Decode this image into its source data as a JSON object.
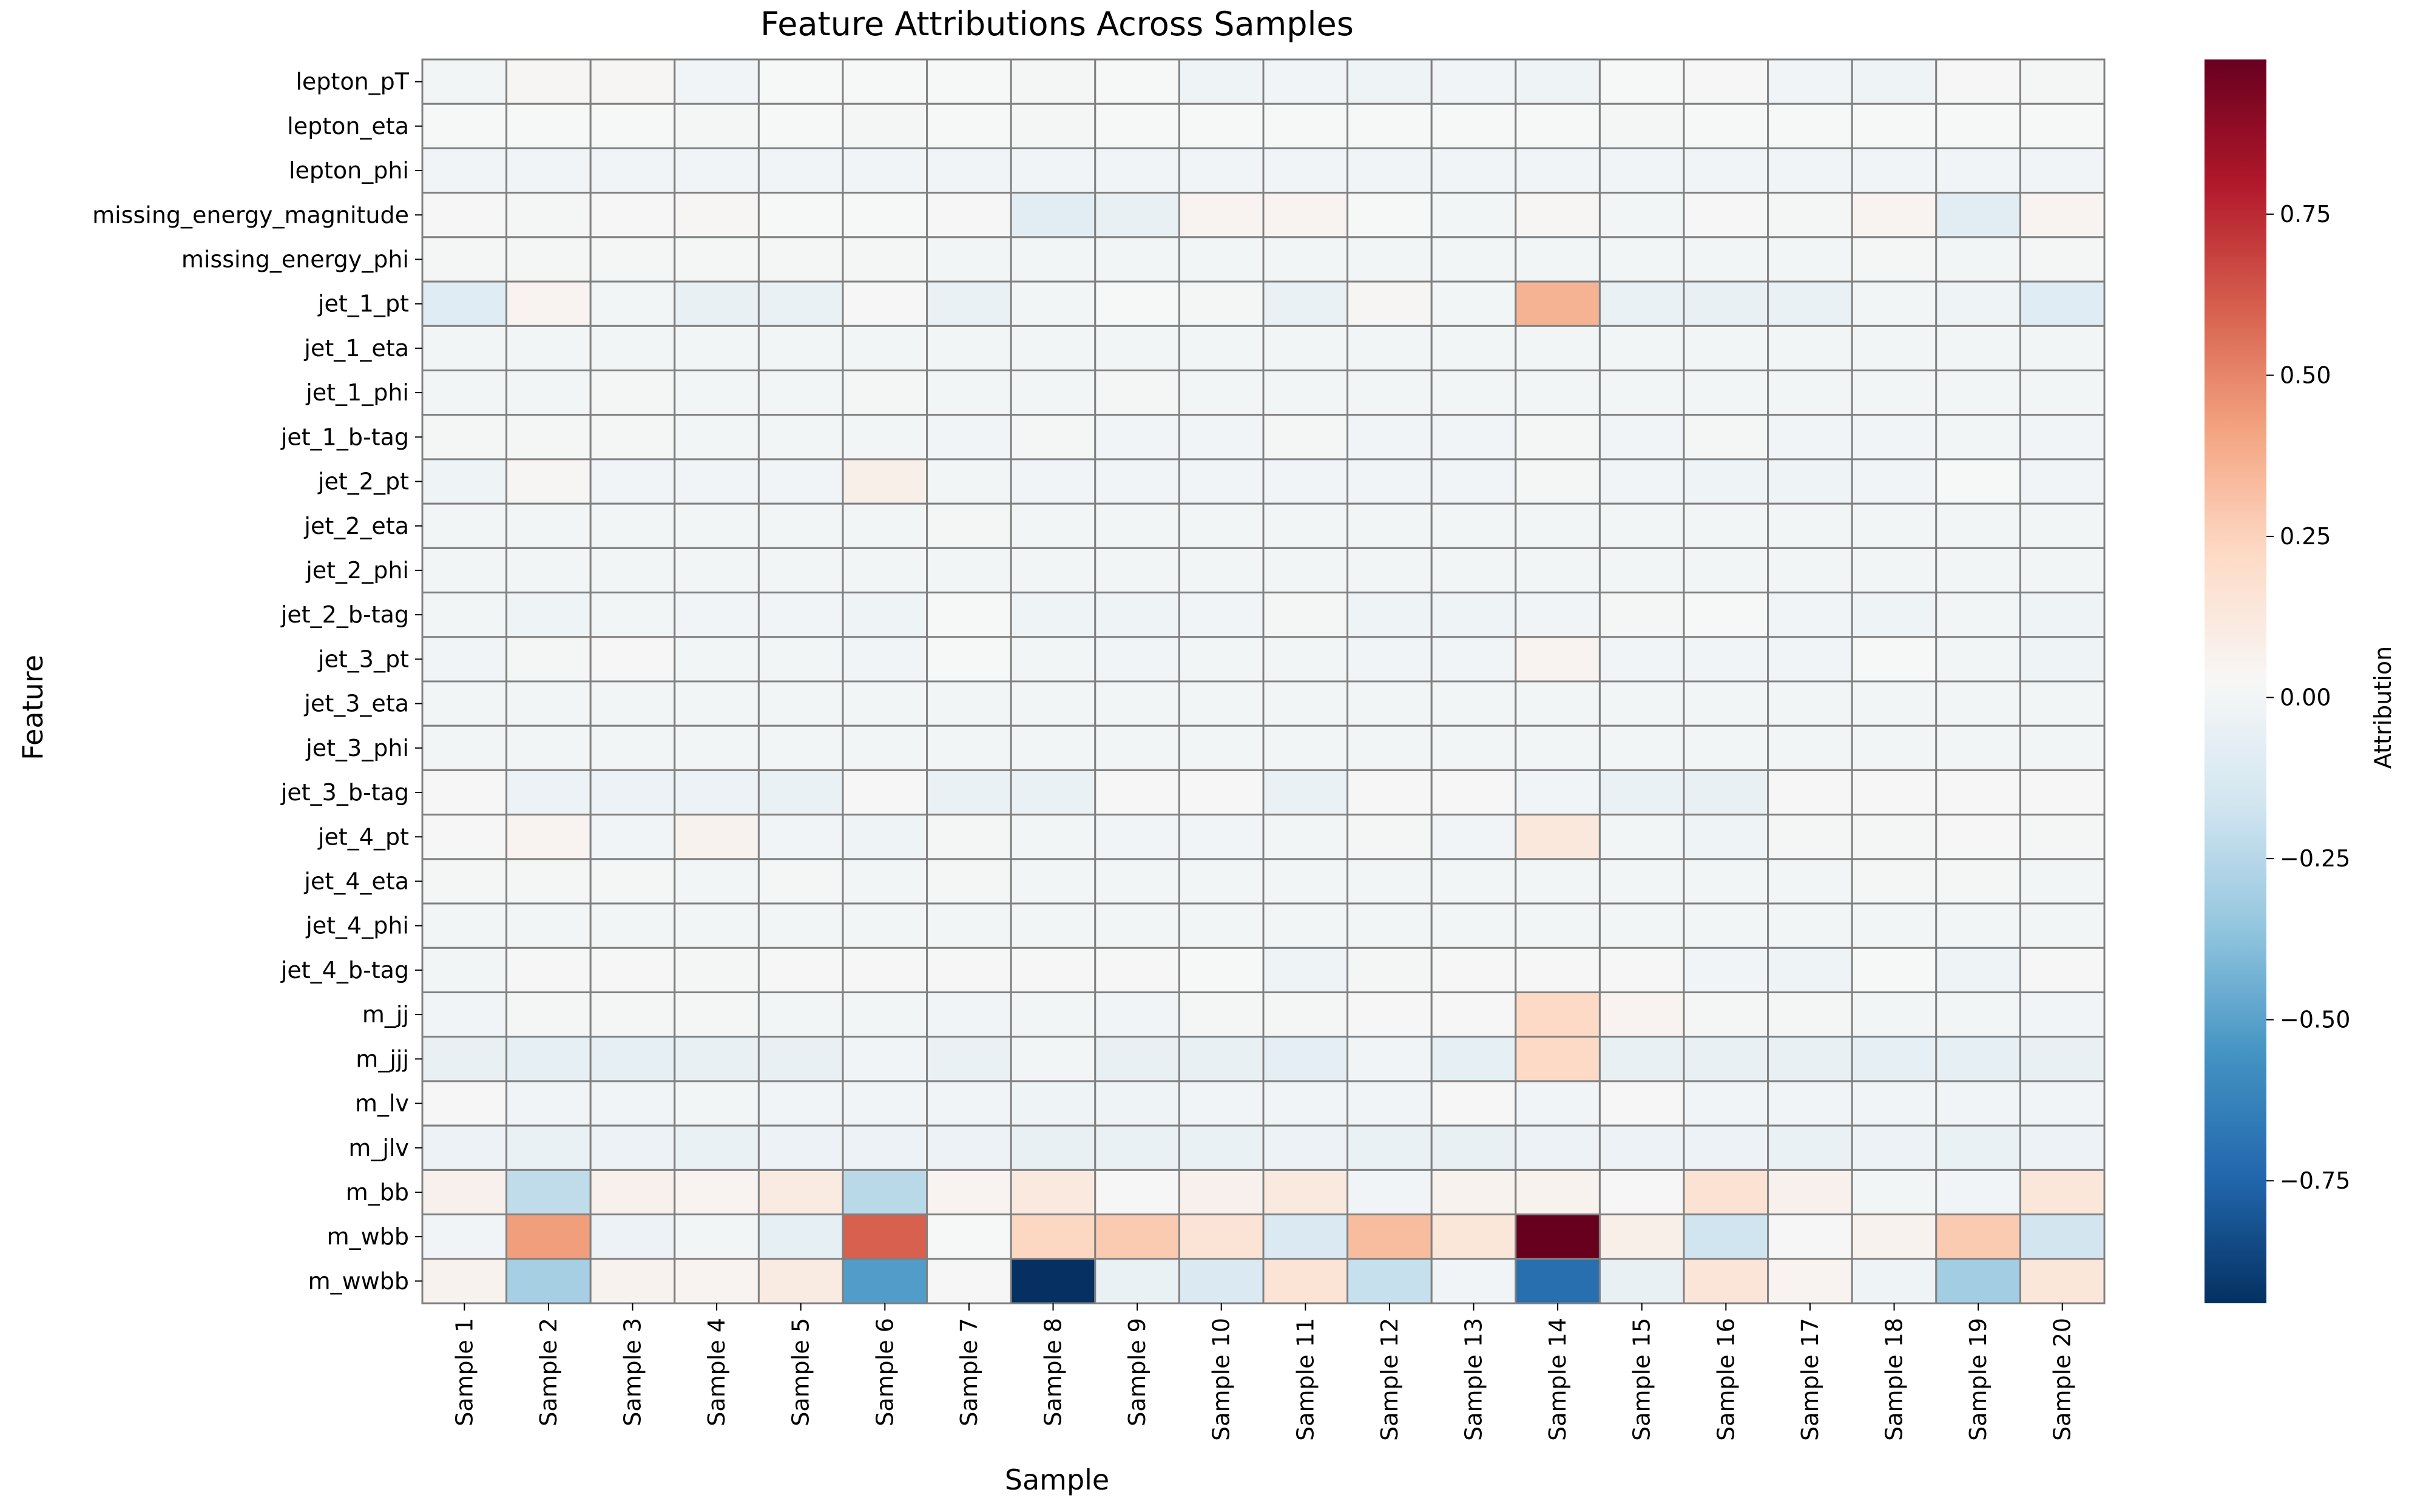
{
  "chart_data": {
    "type": "heatmap",
    "title": "Feature Attributions Across Samples",
    "xlabel": "Sample",
    "ylabel": "Feature",
    "colorbar_label": "Attribution",
    "colormap": "RdBu_r",
    "colorbar_ticks": [
      0.75,
      0.5,
      0.25,
      0.0,
      -0.25,
      -0.5,
      -0.75
    ],
    "colorbar_tick_labels": [
      "0.75",
      "0.50",
      "0.25",
      "0.00",
      "−0.25",
      "−0.50",
      "−0.75"
    ],
    "vmin": -0.94,
    "vmax": 0.99,
    "grid": "cell borders on",
    "legend": "colorbar right",
    "x_categories": [
      "Sample 1",
      "Sample 2",
      "Sample 3",
      "Sample 4",
      "Sample 5",
      "Sample 6",
      "Sample 7",
      "Sample 8",
      "Sample 9",
      "Sample 10",
      "Sample 11",
      "Sample 12",
      "Sample 13",
      "Sample 14",
      "Sample 15",
      "Sample 16",
      "Sample 17",
      "Sample 18",
      "Sample 19",
      "Sample 20"
    ],
    "y_categories": [
      "lepton_pT",
      "lepton_eta",
      "lepton_phi",
      "missing_energy_magnitude",
      "missing_energy_phi",
      "jet_1_pt",
      "jet_1_eta",
      "jet_1_phi",
      "jet_1_b-tag",
      "jet_2_pt",
      "jet_2_eta",
      "jet_2_phi",
      "jet_2_b-tag",
      "jet_3_pt",
      "jet_3_eta",
      "jet_3_phi",
      "jet_3_b-tag",
      "jet_4_pt",
      "jet_4_eta",
      "jet_4_phi",
      "jet_4_b-tag",
      "m_jj",
      "m_jjj",
      "m_lv",
      "m_jlv",
      "m_bb",
      "m_wbb",
      "m_wwbb"
    ],
    "values": [
      [
        0.0,
        0.04,
        0.04,
        -0.01,
        0.02,
        0.02,
        0.02,
        0.01,
        0.02,
        -0.02,
        -0.01,
        -0.02,
        -0.01,
        -0.02,
        0.02,
        0.03,
        -0.01,
        -0.02,
        0.03,
        0.01
      ],
      [
        0.02,
        0.02,
        0.02,
        0.01,
        0.02,
        0.01,
        0.02,
        0.01,
        0.02,
        0.02,
        0.02,
        0.02,
        0.02,
        0.02,
        0.01,
        0.02,
        0.02,
        0.02,
        0.02,
        0.02
      ],
      [
        -0.01,
        -0.01,
        -0.01,
        -0.01,
        -0.01,
        -0.01,
        -0.01,
        -0.01,
        -0.01,
        -0.01,
        -0.01,
        -0.01,
        -0.01,
        -0.01,
        -0.01,
        -0.01,
        -0.01,
        -0.01,
        -0.01,
        -0.01
      ],
      [
        0.03,
        0.01,
        0.03,
        0.04,
        0.02,
        0.02,
        0.03,
        -0.08,
        -0.05,
        0.05,
        0.05,
        0.02,
        0.0,
        0.04,
        0.0,
        0.03,
        0.01,
        0.05,
        -0.08,
        0.05
      ],
      [
        0.01,
        0.01,
        0.01,
        0.01,
        0.01,
        0.01,
        0.0,
        0.0,
        0.0,
        0.0,
        0.0,
        0.0,
        0.0,
        0.0,
        0.0,
        0.0,
        0.0,
        0.01,
        0.0,
        0.01
      ],
      [
        -0.09,
        0.05,
        0.0,
        -0.05,
        -0.04,
        0.03,
        -0.04,
        0.0,
        0.02,
        0.01,
        -0.04,
        0.04,
        0.0,
        0.36,
        -0.04,
        -0.05,
        -0.04,
        0.0,
        -0.02,
        -0.09
      ],
      [
        0.0,
        0.0,
        0.0,
        0.0,
        0.0,
        0.0,
        0.0,
        0.0,
        0.0,
        0.0,
        0.0,
        0.0,
        0.0,
        0.0,
        0.0,
        0.0,
        0.0,
        0.0,
        0.0,
        0.0
      ],
      [
        0.0,
        0.0,
        0.01,
        0.0,
        0.0,
        0.01,
        0.0,
        0.0,
        0.01,
        0.0,
        0.0,
        0.0,
        0.0,
        0.0,
        0.0,
        0.0,
        0.0,
        0.0,
        0.0,
        0.0
      ],
      [
        0.01,
        0.01,
        0.01,
        0.0,
        0.0,
        0.0,
        -0.01,
        0.01,
        -0.01,
        -0.01,
        0.01,
        -0.01,
        -0.01,
        0.01,
        -0.01,
        0.01,
        -0.01,
        -0.01,
        0.0,
        -0.01
      ],
      [
        -0.02,
        0.04,
        -0.01,
        -0.01,
        -0.01,
        0.08,
        0.0,
        -0.01,
        -0.01,
        -0.01,
        -0.01,
        -0.01,
        -0.01,
        0.01,
        -0.01,
        -0.02,
        -0.02,
        -0.01,
        0.02,
        -0.01
      ],
      [
        0.0,
        0.0,
        0.0,
        0.0,
        0.0,
        0.0,
        0.01,
        0.0,
        0.0,
        0.0,
        0.0,
        0.0,
        0.0,
        0.0,
        0.0,
        0.0,
        0.0,
        0.0,
        0.0,
        0.0
      ],
      [
        0.0,
        0.0,
        0.0,
        0.0,
        0.0,
        0.0,
        0.0,
        0.0,
        0.0,
        0.0,
        0.0,
        0.0,
        0.0,
        0.0,
        0.0,
        0.0,
        0.0,
        0.0,
        0.0,
        0.0
      ],
      [
        0.0,
        -0.02,
        0.0,
        -0.01,
        -0.01,
        -0.02,
        0.02,
        -0.02,
        -0.02,
        -0.01,
        0.01,
        -0.02,
        -0.02,
        -0.01,
        0.01,
        0.02,
        -0.01,
        -0.02,
        0.0,
        -0.02
      ],
      [
        -0.01,
        0.01,
        0.03,
        0.0,
        0.0,
        -0.01,
        0.02,
        0.0,
        -0.01,
        0.0,
        0.0,
        -0.01,
        -0.01,
        0.05,
        -0.01,
        -0.01,
        -0.01,
        0.02,
        0.0,
        -0.02
      ],
      [
        0.0,
        0.0,
        0.0,
        0.0,
        0.0,
        0.0,
        0.0,
        0.0,
        0.0,
        0.0,
        0.0,
        0.0,
        0.0,
        0.0,
        0.0,
        0.0,
        0.0,
        0.0,
        0.0,
        0.0
      ],
      [
        0.0,
        0.0,
        0.0,
        0.0,
        0.0,
        0.0,
        0.0,
        0.0,
        0.0,
        0.0,
        0.0,
        0.0,
        0.0,
        0.0,
        0.0,
        0.0,
        0.0,
        0.0,
        0.0,
        0.0
      ],
      [
        0.03,
        -0.03,
        -0.03,
        -0.03,
        -0.04,
        0.03,
        -0.04,
        -0.04,
        0.03,
        0.03,
        -0.04,
        0.03,
        0.03,
        -0.01,
        -0.04,
        -0.05,
        0.03,
        0.03,
        0.03,
        0.03
      ],
      [
        0.03,
        0.05,
        -0.01,
        0.06,
        -0.01,
        -0.02,
        0.01,
        0.0,
        -0.01,
        -0.01,
        0.0,
        0.01,
        -0.01,
        0.13,
        0.0,
        -0.02,
        0.01,
        0.01,
        0.03,
        0.01
      ],
      [
        0.01,
        0.01,
        0.01,
        0.0,
        0.01,
        0.0,
        0.01,
        0.0,
        0.0,
        0.0,
        0.0,
        0.0,
        0.0,
        0.0,
        0.0,
        0.0,
        0.0,
        0.01,
        0.01,
        0.0
      ],
      [
        0.0,
        0.0,
        0.0,
        0.0,
        0.0,
        0.0,
        0.0,
        0.0,
        0.0,
        0.0,
        0.0,
        0.0,
        0.0,
        0.0,
        0.0,
        0.0,
        0.0,
        0.0,
        0.0,
        0.0
      ],
      [
        0.0,
        0.03,
        0.03,
        0.01,
        0.03,
        0.03,
        0.03,
        0.03,
        0.03,
        0.02,
        -0.02,
        0.01,
        0.03,
        0.03,
        0.03,
        -0.01,
        -0.02,
        0.02,
        -0.02,
        0.03
      ],
      [
        -0.01,
        0.01,
        0.01,
        0.01,
        0.0,
        0.0,
        -0.01,
        0.0,
        -0.01,
        0.01,
        0.01,
        0.03,
        0.03,
        0.22,
        0.05,
        0.01,
        0.01,
        0.0,
        0.0,
        -0.01
      ],
      [
        -0.05,
        -0.06,
        -0.06,
        -0.05,
        -0.05,
        -0.01,
        -0.04,
        0.0,
        -0.05,
        -0.05,
        -0.07,
        -0.01,
        -0.06,
        0.22,
        -0.05,
        -0.05,
        -0.05,
        -0.06,
        -0.06,
        -0.05
      ],
      [
        0.03,
        -0.01,
        -0.01,
        0.0,
        -0.01,
        -0.01,
        -0.01,
        -0.02,
        -0.02,
        -0.01,
        -0.01,
        -0.01,
        0.03,
        -0.01,
        0.03,
        -0.01,
        -0.01,
        -0.01,
        -0.01,
        -0.01
      ],
      [
        -0.03,
        -0.04,
        -0.03,
        -0.04,
        -0.03,
        -0.03,
        -0.03,
        -0.05,
        -0.04,
        -0.04,
        -0.03,
        -0.04,
        -0.05,
        -0.03,
        -0.03,
        -0.03,
        -0.04,
        -0.03,
        -0.04,
        -0.03
      ],
      [
        0.07,
        -0.22,
        0.07,
        0.05,
        0.11,
        -0.24,
        0.05,
        0.12,
        0.03,
        0.07,
        0.12,
        -0.01,
        0.06,
        0.06,
        0.03,
        0.17,
        0.07,
        0.0,
        -0.01,
        0.14
      ],
      [
        -0.01,
        0.43,
        -0.03,
        0.0,
        -0.06,
        0.6,
        0.02,
        0.23,
        0.28,
        0.16,
        -0.12,
        0.33,
        0.14,
        0.99,
        0.08,
        -0.17,
        0.03,
        0.06,
        0.28,
        -0.16
      ],
      [
        0.06,
        -0.3,
        0.06,
        0.05,
        0.11,
        -0.52,
        0.03,
        -0.94,
        -0.04,
        -0.12,
        0.16,
        -0.2,
        -0.01,
        -0.71,
        -0.05,
        0.15,
        0.05,
        -0.02,
        -0.31,
        0.14
      ]
    ]
  }
}
